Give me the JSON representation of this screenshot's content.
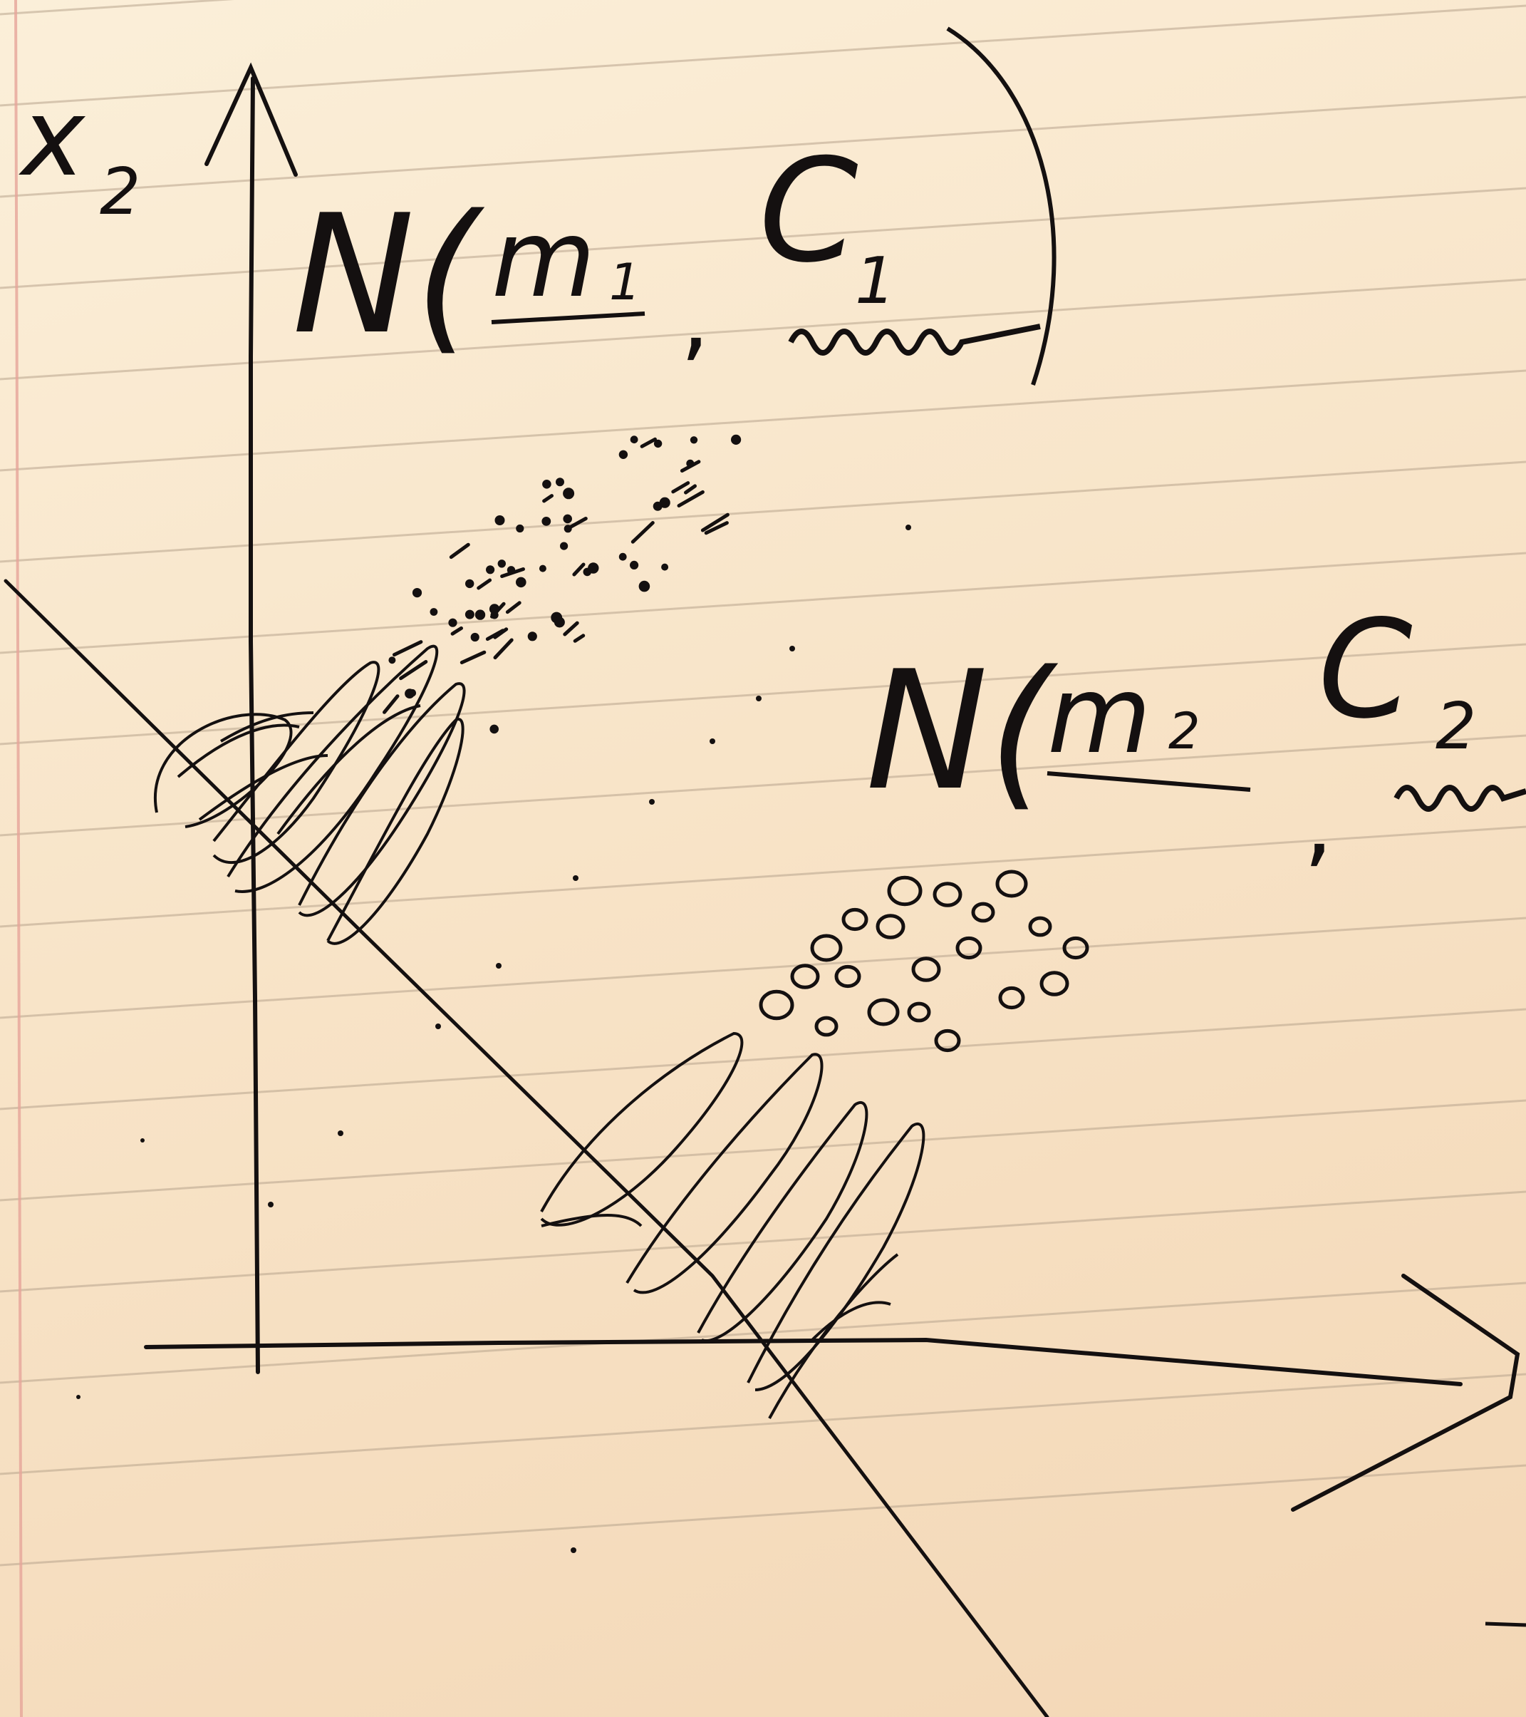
{
  "labels": {
    "axis_y": "x",
    "axis_y_sub": "2",
    "dist1_N": "N(",
    "dist1_mean": "m",
    "dist1_mean_sub": "1",
    "dist1_comma": ",",
    "dist1_cov": "C",
    "dist1_cov_sub": "1",
    "dist1_close": ")",
    "dist2_N": "N(",
    "dist2_mean": "m",
    "dist2_mean_sub": "2",
    "dist2_comma": ",",
    "dist2_cov": "C",
    "dist2_cov_sub": "2"
  },
  "colors": {
    "paper": "#f9e8d0",
    "rule_line": "#b9a58e",
    "margin_line": "#e7a59a",
    "ink": "#141010"
  },
  "icons": {
    "cluster1_marker": "dot",
    "cluster2_marker": "circle"
  }
}
